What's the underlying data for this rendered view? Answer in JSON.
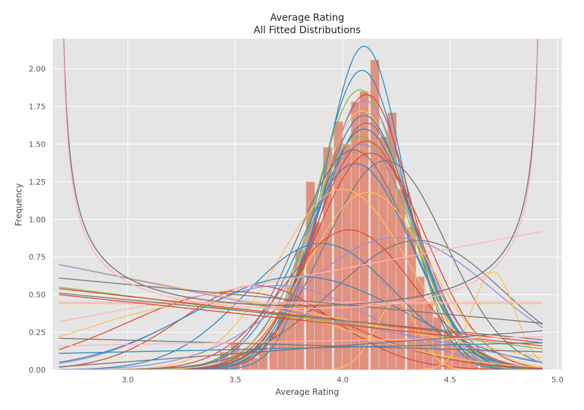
{
  "chart_data": {
    "type": "bar",
    "title": "Average Rating",
    "subtitle": "All Fitted Distributions",
    "xlabel": "Average Rating",
    "ylabel": "Frequency",
    "xlim": [
      2.65,
      5.02
    ],
    "ylim": [
      0,
      2.2
    ],
    "x_ticks": [
      3.0,
      3.5,
      4.0,
      4.5,
      5.0
    ],
    "x_tick_labels": [
      "3.0",
      "3.5",
      "4.0",
      "4.5",
      "5.0"
    ],
    "y_ticks": [
      0,
      0.25,
      0.5,
      0.75,
      1.0,
      1.25,
      1.5,
      1.75,
      2.0
    ],
    "y_tick_labels": [
      "0.00",
      "0.25",
      "0.50",
      "0.75",
      "1.00",
      "1.25",
      "1.50",
      "1.75",
      "2.00"
    ],
    "grid": true,
    "background_color": "#e5e5e5",
    "histogram": {
      "color": "#e0826f",
      "bin_width": 0.0425,
      "bins": [
        {
          "x": 3.45,
          "y": 0.12
        },
        {
          "x": 3.5,
          "y": 0.18
        },
        {
          "x": 3.55,
          "y": 0.12
        },
        {
          "x": 3.59,
          "y": 0.08
        },
        {
          "x": 3.63,
          "y": 0.15
        },
        {
          "x": 3.68,
          "y": 0.25
        },
        {
          "x": 3.72,
          "y": 0.45
        },
        {
          "x": 3.76,
          "y": 0.55
        },
        {
          "x": 3.8,
          "y": 0.8
        },
        {
          "x": 3.85,
          "y": 1.25
        },
        {
          "x": 3.89,
          "y": 0.98
        },
        {
          "x": 3.93,
          "y": 1.48
        },
        {
          "x": 3.98,
          "y": 1.65
        },
        {
          "x": 4.02,
          "y": 1.5
        },
        {
          "x": 4.06,
          "y": 1.78
        },
        {
          "x": 4.1,
          "y": 1.85
        },
        {
          "x": 4.15,
          "y": 2.06
        },
        {
          "x": 4.19,
          "y": 1.55
        },
        {
          "x": 4.23,
          "y": 1.71
        },
        {
          "x": 4.27,
          "y": 1.2
        },
        {
          "x": 4.32,
          "y": 0.95
        },
        {
          "x": 4.36,
          "y": 0.62
        },
        {
          "x": 4.4,
          "y": 0.45
        },
        {
          "x": 4.44,
          "y": 0.35
        },
        {
          "x": 4.49,
          "y": 0.25
        },
        {
          "x": 4.53,
          "y": 0.18
        },
        {
          "x": 4.57,
          "y": 0.12
        },
        {
          "x": 4.61,
          "y": 0.1
        },
        {
          "x": 4.66,
          "y": 0.07
        },
        {
          "x": 4.7,
          "y": 0.05
        },
        {
          "x": 4.74,
          "y": 0.04
        },
        {
          "x": 4.78,
          "y": 0.03
        },
        {
          "x": 4.83,
          "y": 0.02
        },
        {
          "x": 4.87,
          "y": 0.02
        }
      ]
    },
    "curve_range": [
      2.68,
      4.93
    ],
    "fitted_curves": [
      {
        "kind": "gauss",
        "mu": 4.1,
        "sigma": 0.185,
        "peak": 2.15,
        "color": "#348abd"
      },
      {
        "kind": "gauss",
        "mu": 4.09,
        "sigma": 0.2,
        "peak": 1.99,
        "color": "#348abd"
      },
      {
        "kind": "gauss",
        "mu": 4.08,
        "sigma": 0.21,
        "peak": 1.86,
        "color": "#8eba42"
      },
      {
        "kind": "gauss",
        "mu": 4.11,
        "sigma": 0.21,
        "peak": 1.83,
        "color": "#e24a33"
      },
      {
        "kind": "gauss",
        "mu": 4.1,
        "sigma": 0.21,
        "peak": 1.79,
        "color": "#988ed5"
      },
      {
        "kind": "gauss",
        "mu": 4.09,
        "sigma": 0.22,
        "peak": 1.72,
        "color": "#fbc15e"
      },
      {
        "kind": "gauss",
        "mu": 4.1,
        "sigma": 0.22,
        "peak": 1.69,
        "color": "#348abd"
      },
      {
        "kind": "gauss",
        "mu": 4.11,
        "sigma": 0.22,
        "peak": 1.64,
        "color": "#777777"
      },
      {
        "kind": "gauss",
        "mu": 4.1,
        "sigma": 0.23,
        "peak": 1.6,
        "color": "#348abd"
      },
      {
        "kind": "gauss",
        "mu": 4.08,
        "sigma": 0.24,
        "peak": 1.55,
        "color": "#8eba42"
      },
      {
        "kind": "gauss",
        "mu": 4.11,
        "sigma": 0.24,
        "peak": 1.52,
        "color": "#e24a33"
      },
      {
        "kind": "gauss",
        "mu": 4.09,
        "sigma": 0.25,
        "peak": 1.5,
        "color": "#988ed5"
      },
      {
        "kind": "gauss",
        "mu": 4.05,
        "sigma": 0.26,
        "peak": 1.46,
        "color": "#777777"
      },
      {
        "kind": "gauss",
        "mu": 4.13,
        "sigma": 0.26,
        "peak": 1.44,
        "color": "#e24a33"
      },
      {
        "kind": "gauss",
        "mu": 4.2,
        "sigma": 0.28,
        "peak": 1.39,
        "color": "#777777"
      },
      {
        "kind": "gauss",
        "mu": 4.06,
        "sigma": 0.26,
        "peak": 1.37,
        "color": "#348abd"
      },
      {
        "kind": "gauss",
        "mu": 4.0,
        "sigma": 0.3,
        "peak": 1.2,
        "color": "#fbc15e"
      },
      {
        "kind": "gauss",
        "mu": 4.12,
        "sigma": 0.28,
        "peak": 1.18,
        "color": "#fbc15e"
      },
      {
        "kind": "gauss",
        "mu": 4.03,
        "sigma": 0.3,
        "peak": 0.93,
        "color": "#e24a33"
      },
      {
        "kind": "gauss",
        "mu": 4.35,
        "sigma": 0.4,
        "peak": 0.86,
        "color": "#777777"
      },
      {
        "kind": "gauss",
        "mu": 3.9,
        "sigma": 0.35,
        "peak": 0.84,
        "color": "#348abd"
      },
      {
        "kind": "gauss",
        "mu": 4.25,
        "sigma": 0.45,
        "peak": 0.88,
        "color": "#988ed5"
      },
      {
        "kind": "gauss",
        "mu": 3.6,
        "sigma": 0.35,
        "peak": 0.56,
        "color": "#e24a33"
      },
      {
        "kind": "gauss",
        "mu": 3.7,
        "sigma": 0.45,
        "peak": 0.56,
        "color": "#988ed5"
      },
      {
        "kind": "gauss",
        "mu": 3.8,
        "sigma": 0.5,
        "peak": 0.62,
        "color": "#348abd"
      },
      {
        "kind": "gauss",
        "mu": 3.5,
        "sigma": 0.5,
        "peak": 0.52,
        "color": "#e24a33"
      },
      {
        "kind": "gauss",
        "mu": 4.7,
        "sigma": 0.1,
        "peak": 0.65,
        "color": "#fbc15e"
      },
      {
        "kind": "gauss",
        "mu": 3.4,
        "sigma": 0.6,
        "peak": 0.45,
        "color": "#fbc15e"
      },
      {
        "kind": "gauss",
        "mu": 4.25,
        "sigma": 0.1,
        "peak": 0.45,
        "color": "#fbc15e"
      },
      {
        "kind": "line",
        "y0": 0.45,
        "y1": 0.45,
        "color": "#ffb5b8"
      },
      {
        "kind": "line",
        "y0": 0.44,
        "y1": 0.44,
        "color": "#fbc15e"
      },
      {
        "kind": "line",
        "y0": 0.32,
        "y1": 0.92,
        "color": "#ffb5b8"
      },
      {
        "kind": "line",
        "y0": 0.7,
        "y1": 0.08,
        "color": "#fbc15e"
      },
      {
        "kind": "line",
        "y0": 0.7,
        "y1": 0.05,
        "color": "#988ed5"
      },
      {
        "kind": "line",
        "y0": 0.61,
        "y1": 0.31,
        "color": "#777777"
      },
      {
        "kind": "line",
        "y0": 0.55,
        "y1": 0.14,
        "color": "#8eba42"
      },
      {
        "kind": "line",
        "y0": 0.54,
        "y1": 0.18,
        "color": "#e24a33"
      },
      {
        "kind": "line",
        "y0": 0.51,
        "y1": 0.2,
        "color": "#777777"
      },
      {
        "kind": "line",
        "y0": 0.5,
        "y1": 0.16,
        "color": "#e24a33"
      },
      {
        "kind": "line",
        "y0": 0.21,
        "y1": 0.12,
        "color": "#777777"
      },
      {
        "kind": "line",
        "y0": 0.16,
        "y1": 0.22,
        "color": "#ffb5b8"
      },
      {
        "kind": "line",
        "y0": 0.11,
        "y1": 0.18,
        "color": "#348abd"
      },
      {
        "kind": "line",
        "y0": 0.02,
        "y1": 0.26,
        "color": "#777777"
      },
      {
        "kind": "ushape",
        "y_mid": 0.44,
        "color": "#988ed5"
      },
      {
        "kind": "ushape",
        "y_mid": 0.44,
        "color": "#777777"
      },
      {
        "kind": "ushape",
        "y_mid": 0.42,
        "color": "#ffb5b8"
      }
    ]
  }
}
